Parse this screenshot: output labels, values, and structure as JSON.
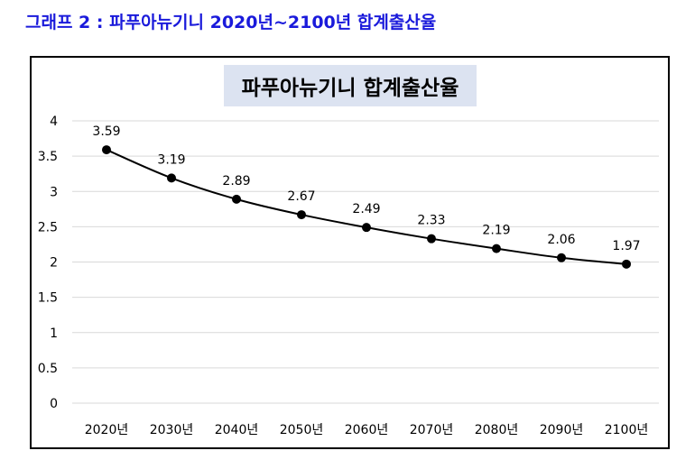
{
  "caption": "그래프 2 : 파푸아뉴기니 2020년~2100년 합계출산율",
  "colors": {
    "caption": "#1a1adb",
    "title_bg": "#dce3f1",
    "line": "#000000",
    "gridline": "#d9d9d9"
  },
  "chart_data": {
    "type": "line",
    "title": "파푸아뉴기니 합계출산율",
    "categories": [
      "2020년",
      "2030년",
      "2040년",
      "2050년",
      "2060년",
      "2070년",
      "2080년",
      "2090년",
      "2100년"
    ],
    "series": [
      {
        "name": "합계출산율",
        "values": [
          3.59,
          3.19,
          2.89,
          2.67,
          2.49,
          2.33,
          2.19,
          2.06,
          1.97
        ],
        "labels": [
          "3.59",
          "3.19",
          "2.89",
          "2.67",
          "2.49",
          "2.33",
          "2.19",
          "2.06",
          "1.97"
        ]
      }
    ],
    "ylim": [
      0,
      4
    ],
    "yticks": [
      0,
      0.5,
      1,
      1.5,
      2,
      2.5,
      3,
      3.5,
      4
    ],
    "ytick_labels": [
      "0",
      "0.5",
      "1",
      "1.5",
      "2",
      "2.5",
      "3",
      "3.5",
      "4"
    ],
    "xlabel": "",
    "ylabel": "",
    "grid": true,
    "legend": "none"
  }
}
